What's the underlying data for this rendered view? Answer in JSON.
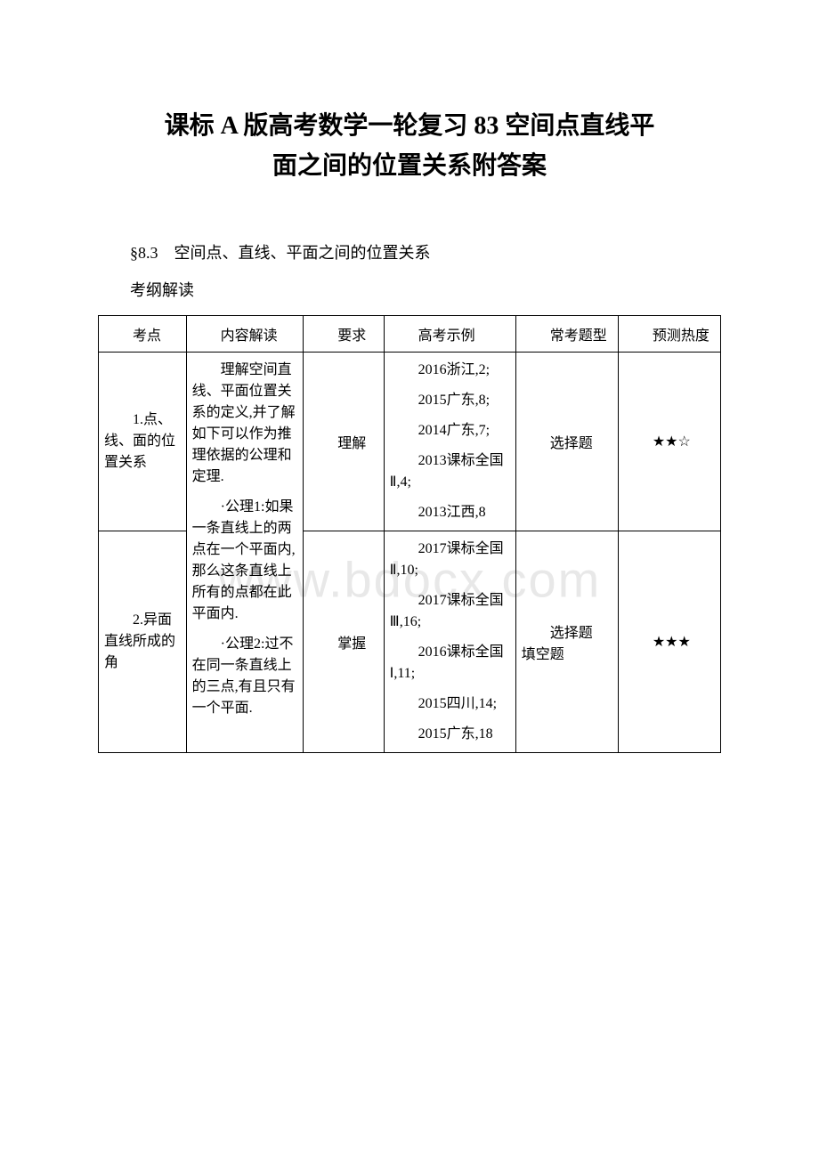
{
  "watermark": "www.bdocx.com",
  "title_line1": "课标 A 版高考数学一轮复习 83 空间点直线平",
  "title_line2": "面之间的位置关系附答案",
  "section_heading": "§8.3　空间点、直线、平面之间的位置关系",
  "sub_heading": "考纲解读",
  "table": {
    "columns": [
      "考点",
      "内容解读",
      "要求",
      "高考示例",
      "常考题型",
      "预测热度"
    ],
    "rows": [
      {
        "topic": "1.点、线、面的位置关系",
        "requirement": "理解",
        "examples": [
          "2016浙江,2;",
          "2015广东,8;",
          "2014广东,7;",
          "2013课标全国Ⅱ,4;",
          "2013江西,8"
        ],
        "question_type": "选择题",
        "heat": "★★☆"
      },
      {
        "topic": "2.异面直线所成的角",
        "requirement": "掌握",
        "examples": [
          "2017课标全国Ⅱ,10;",
          "2017课标全国Ⅲ,16;",
          "2016课标全国Ⅰ,11;",
          "2015四川,14;",
          "2015广东,18"
        ],
        "question_type": "选择题　填空题",
        "heat": "★★★"
      }
    ],
    "content_merged": [
      "理解空间直线、平面位置关系的定义,并了解如下可以作为推理依据的公理和定理.",
      "·公理1:如果一条直线上的两点在一个平面内,那么这条直线上所有的点都在此平面内.",
      "·公理2:过不在同一条直线上的三点,有且只有一个平面."
    ]
  },
  "colors": {
    "background": "#ffffff",
    "text": "#000000",
    "border": "#000000",
    "watermark": "#e8e8e8"
  },
  "typography": {
    "title_fontsize": 28,
    "body_fontsize": 18,
    "table_fontsize": 16,
    "font_family": "SimSun"
  }
}
